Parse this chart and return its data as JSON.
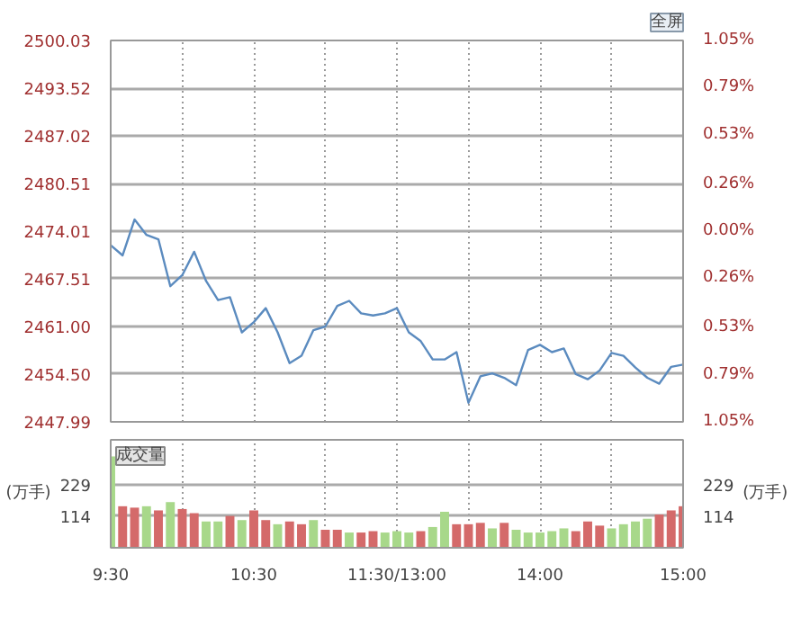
{
  "chart_data": [
    {
      "type": "line",
      "annotations": [
        "全屏"
      ],
      "categories": [
        null,
        null,
        null,
        null,
        null,
        null,
        null,
        null,
        null,
        null,
        null,
        null,
        null,
        null,
        null,
        null,
        null,
        null,
        null,
        null,
        null,
        null,
        null,
        null,
        null,
        null,
        null,
        null,
        null,
        null,
        null,
        null,
        null,
        null,
        null,
        null,
        null,
        null,
        null,
        null,
        null,
        null,
        null,
        null,
        null,
        null,
        null,
        null,
        null
      ],
      "ylim": [
        2447.99,
        2500.03
      ],
      "yticks": [
        2447.99,
        {
          "value": 2454.5,
          "label": "2454.50"
        },
        {
          "value": 2461,
          "label": "2461.00"
        },
        2467.51,
        2474.01,
        2480.51,
        2487.02,
        2493.52,
        2500.03
      ],
      "y2lim": [
        -1.05,
        1.05
      ],
      "y2ticks": [
        {
          "value": -1.05,
          "label": "1.05%"
        },
        {
          "value": -0.79,
          "label": "0.79%"
        },
        {
          "value": -0.53,
          "label": "0.53%"
        },
        {
          "value": -0.26,
          "label": "0.26%"
        },
        {
          "value": 0,
          "label": "0.00%"
        },
        {
          "value": 0.26,
          "label": "0.26%"
        },
        {
          "value": 0.53,
          "label": "0.53%"
        },
        {
          "value": 0.79,
          "label": "0.79%"
        },
        {
          "value": 1.05,
          "label": "1.05%"
        }
      ],
      "grid": true,
      "tick_labels": "y",
      "series": [
        {
          "color": "#5b8bbf",
          "values": [
            2472.1,
            2470.7,
            2475.6,
            2473.5,
            2472.9,
            2466.5,
            2468.0,
            2471.2,
            2467.2,
            2464.6,
            2465.0,
            2460.2,
            2461.6,
            2463.5,
            2460.2,
            2456.0,
            2457.0,
            2460.5,
            2461.0,
            2463.8,
            2464.5,
            2462.8,
            2462.5,
            2462.8,
            2463.5,
            2460.2,
            2459.0,
            2456.5,
            2456.5,
            2457.5,
            2450.6,
            2454.2,
            2454.6,
            2454.0,
            2453.0,
            2457.8,
            2458.5,
            2457.5,
            2458.0,
            2454.5,
            2453.8,
            2455.0,
            2457.4,
            2457.0,
            2455.4,
            2454.0,
            2453.2,
            2455.5,
            2455.8
          ]
        }
      ]
    },
    {
      "type": "bar",
      "annotations": [
        "成交量"
      ],
      "ylabel": "(万手)",
      "y2label": "(万手)",
      "categories": [
        "9:30",
        null,
        null,
        null,
        null,
        null,
        null,
        null,
        null,
        null,
        null,
        null,
        "10:30",
        null,
        null,
        null,
        null,
        null,
        null,
        null,
        null,
        null,
        null,
        null,
        "11:30/13:00",
        null,
        null,
        null,
        null,
        null,
        null,
        null,
        null,
        null,
        null,
        null,
        "14:00",
        null,
        null,
        null,
        null,
        null,
        null,
        null,
        null,
        null,
        null,
        null,
        "15:00"
      ],
      "ylim": [
        0,
        390
      ],
      "yticks": [
        114,
        229
      ],
      "y2lim": [
        0,
        390
      ],
      "y2ticks": [
        114,
        229
      ],
      "grid": true,
      "values": [
        330,
        150,
        145,
        150,
        135,
        165,
        140,
        125,
        95,
        95,
        115,
        100,
        135,
        100,
        85,
        95,
        85,
        100,
        65,
        65,
        55,
        55,
        60,
        55,
        60,
        55,
        60,
        75,
        130,
        85,
        85,
        90,
        70,
        90,
        65,
        55,
        55,
        60,
        70,
        60,
        95,
        80,
        70,
        85,
        95,
        105,
        120,
        135,
        150
      ],
      "colors": [
        "#a8d88a",
        "#d46a6a",
        "#d46a6a",
        "#a8d88a",
        "#d46a6a",
        "#a8d88a",
        "#d46a6a",
        "#d46a6a",
        "#a8d88a",
        "#a8d88a",
        "#d46a6a",
        "#a8d88a",
        "#d46a6a",
        "#d46a6a",
        "#a8d88a",
        "#d46a6a",
        "#d46a6a",
        "#a8d88a",
        "#d46a6a",
        "#d46a6a",
        "#a8d88a",
        "#d46a6a",
        "#d46a6a",
        "#a8d88a",
        "#a8d88a",
        "#a8d88a",
        "#d46a6a",
        "#a8d88a",
        "#a8d88a",
        "#d46a6a",
        "#d46a6a",
        "#d46a6a",
        "#a8d88a",
        "#d46a6a",
        "#a8d88a",
        "#a8d88a",
        "#a8d88a",
        "#a8d88a",
        "#a8d88a",
        "#d46a6a",
        "#d46a6a",
        "#d46a6a",
        "#a8d88a",
        "#a8d88a",
        "#a8d88a",
        "#a8d88a",
        "#d46a6a",
        "#d46a6a",
        "#d46a6a"
      ]
    }
  ]
}
